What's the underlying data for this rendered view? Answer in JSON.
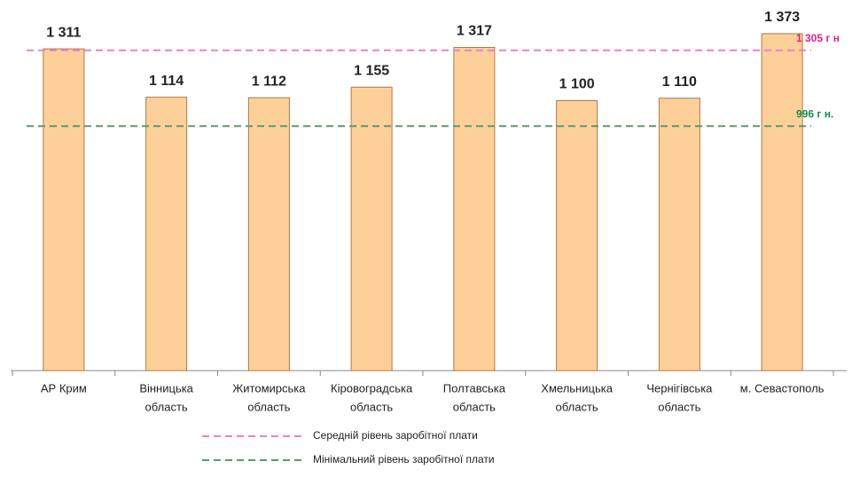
{
  "chart_data": {
    "type": "bar",
    "categories": [
      [
        "АР Крим"
      ],
      [
        "Вінницька",
        "область"
      ],
      [
        "Житомирська",
        "область"
      ],
      [
        "Кіровоградська",
        "область"
      ],
      [
        "Полтавська",
        "область"
      ],
      [
        "Хмельницька",
        "область"
      ],
      [
        "Чернігівська",
        "область"
      ],
      [
        "м. Севастополь"
      ]
    ],
    "values": [
      1311,
      1114,
      1112,
      1155,
      1317,
      1100,
      1110,
      1373
    ],
    "value_labels": [
      "1 311",
      "1 114",
      "1 112",
      "1 155",
      "1 317",
      "1 100",
      "1 110",
      "1 373"
    ],
    "color": "#fdd09a",
    "ylim": [
      0,
      1400
    ],
    "reference_lines": [
      {
        "name": "Середній рівень заробітної плати",
        "value": 1305,
        "label": "1 305 г н",
        "color": "#f080c0",
        "label_color": "#e0208a"
      },
      {
        "name": "Мінімальний рівень заробітної плати",
        "value": 996,
        "label": "996 г н.",
        "color": "#5a9a70",
        "label_color": "#1a8a50"
      }
    ]
  }
}
